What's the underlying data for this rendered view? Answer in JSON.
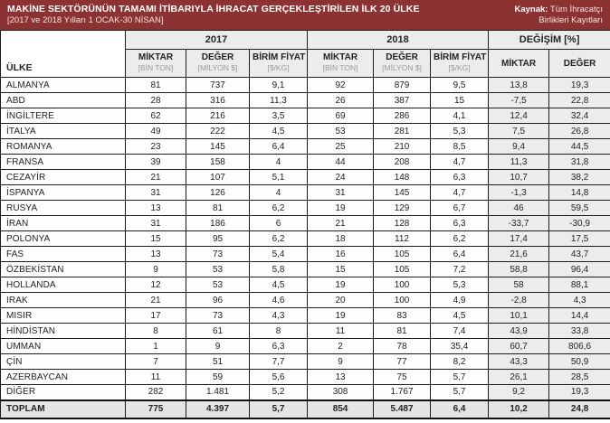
{
  "header": {
    "title": "MAKİNE SEKTÖRÜNÜN TAMAMI İTİBARIYLA İHRACAT GERÇEKLEŞTİRİLEN İLK 20 ÜLKE",
    "subtitle": "[2017 ve 2018 Yılları 1 OCAK-30 NİSAN]",
    "source_label": "Kaynak:",
    "source_line1": "Tüm İhracatçı",
    "source_line2": "Birlikleri Kayıtları",
    "band_color": "#8d3232"
  },
  "table": {
    "country_header": "ÜLKE",
    "groups": [
      {
        "label": "2017",
        "span": 3
      },
      {
        "label": "2018",
        "span": 3
      },
      {
        "label": "DEĞİŞİM [%]",
        "span": 2
      }
    ],
    "subheaders": [
      {
        "label": "MİKTAR",
        "unit": "[BİN TON]"
      },
      {
        "label": "DEĞER",
        "unit": "[MİLYON $]"
      },
      {
        "label": "BİRİM FİYAT",
        "unit": "[$/KG]"
      },
      {
        "label": "MİKTAR",
        "unit": "[BİN TON]"
      },
      {
        "label": "DEĞER",
        "unit": "[MİLYON $]"
      },
      {
        "label": "BİRİM FİYAT",
        "unit": "[$/KG]"
      },
      {
        "label": "MİKTAR",
        "unit": ""
      },
      {
        "label": "DEĞER",
        "unit": ""
      }
    ],
    "rows": [
      {
        "country": "ALMANYA",
        "values": [
          "81",
          "737",
          "9,1",
          "92",
          "879",
          "9,5",
          "13,8",
          "19,3"
        ]
      },
      {
        "country": "ABD",
        "values": [
          "28",
          "316",
          "11,3",
          "26",
          "387",
          "15",
          "-7,5",
          "22,8"
        ]
      },
      {
        "country": "İNGİLTERE",
        "values": [
          "62",
          "216",
          "3,5",
          "69",
          "286",
          "4,1",
          "12,4",
          "32,4"
        ]
      },
      {
        "country": "İTALYA",
        "values": [
          "49",
          "222",
          "4,5",
          "53",
          "281",
          "5,3",
          "7,5",
          "26,8"
        ]
      },
      {
        "country": "ROMANYA",
        "values": [
          "23",
          "145",
          "6,4",
          "25",
          "210",
          "8,5",
          "9,4",
          "44,5"
        ]
      },
      {
        "country": "FRANSA",
        "values": [
          "39",
          "158",
          "4",
          "44",
          "208",
          "4,7",
          "11,3",
          "31,8"
        ]
      },
      {
        "country": "CEZAYİR",
        "values": [
          "21",
          "107",
          "5,1",
          "24",
          "148",
          "6,3",
          "10,7",
          "38,2"
        ]
      },
      {
        "country": "İSPANYA",
        "values": [
          "31",
          "126",
          "4",
          "31",
          "145",
          "4,7",
          "-1,3",
          "14,8"
        ]
      },
      {
        "country": "RUSYA",
        "values": [
          "13",
          "81",
          "6,2",
          "19",
          "129",
          "6,7",
          "46",
          "59,5"
        ]
      },
      {
        "country": "İRAN",
        "values": [
          "31",
          "186",
          "6",
          "21",
          "128",
          "6,3",
          "-33,7",
          "-30,9"
        ]
      },
      {
        "country": "POLONYA",
        "values": [
          "15",
          "95",
          "6,2",
          "18",
          "112",
          "6,2",
          "17,4",
          "17,5"
        ]
      },
      {
        "country": "FAS",
        "values": [
          "13",
          "73",
          "5,4",
          "16",
          "105",
          "6,4",
          "21,6",
          "43,7"
        ]
      },
      {
        "country": "ÖZBEKİSTAN",
        "values": [
          "9",
          "53",
          "5,8",
          "15",
          "105",
          "7,2",
          "58,8",
          "96,4"
        ]
      },
      {
        "country": "HOLLANDA",
        "values": [
          "12",
          "53",
          "4,5",
          "19",
          "100",
          "5,3",
          "58",
          "88,1"
        ]
      },
      {
        "country": "IRAK",
        "values": [
          "21",
          "96",
          "4,6",
          "20",
          "100",
          "4,9",
          "-2,8",
          "4,3"
        ]
      },
      {
        "country": "MISIR",
        "values": [
          "17",
          "73",
          "4,3",
          "19",
          "83",
          "4,5",
          "10,1",
          "14,4"
        ]
      },
      {
        "country": "HİNDİSTAN",
        "values": [
          "8",
          "61",
          "8",
          "11",
          "81",
          "7,4",
          "43,9",
          "33,8"
        ]
      },
      {
        "country": "UMMAN",
        "values": [
          "1",
          "9",
          "6,3",
          "2",
          "78",
          "35,4",
          "60,7",
          "806,6"
        ]
      },
      {
        "country": "ÇİN",
        "values": [
          "7",
          "51",
          "7,7",
          "9",
          "77",
          "8,2",
          "43,3",
          "50,9"
        ]
      },
      {
        "country": "AZERBAYCAN",
        "values": [
          "11",
          "59",
          "5,6",
          "13",
          "75",
          "5,7",
          "26,1",
          "28,5"
        ]
      },
      {
        "country": "DİĞER",
        "values": [
          "282",
          "1.481",
          "5,2",
          "308",
          "1.767",
          "5,7",
          "9,2",
          "19,3"
        ]
      }
    ],
    "total": {
      "label": "TOPLAM",
      "values": [
        "775",
        "4.397",
        "5,7",
        "854",
        "5.487",
        "6,4",
        "10,2",
        "24,8"
      ]
    }
  }
}
